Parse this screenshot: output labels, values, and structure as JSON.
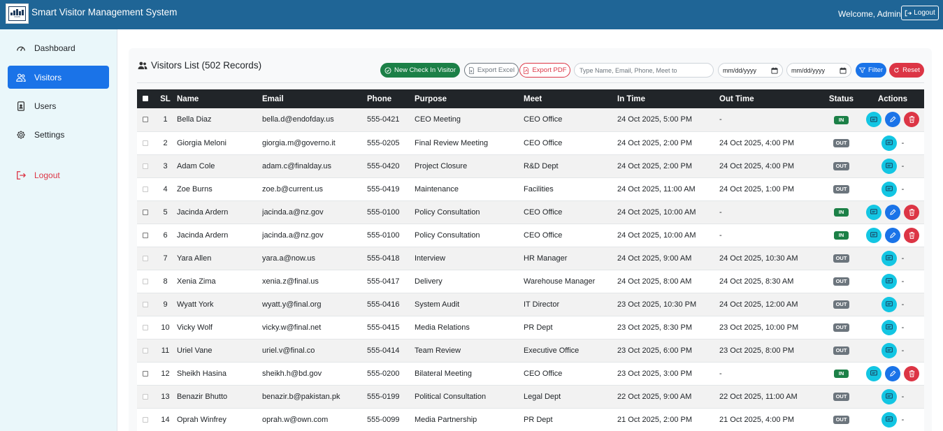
{
  "header": {
    "app_title": "Smart Visitor Management System",
    "welcome": "Welcome, Admin",
    "logout_label": "Logout"
  },
  "sidebar": {
    "items": [
      {
        "label": "Dashboard",
        "icon": "gauge-icon",
        "active": false
      },
      {
        "label": "Visitors",
        "icon": "people-icon",
        "active": true
      },
      {
        "label": "Users",
        "icon": "id-badge-icon",
        "active": false
      },
      {
        "label": "Settings",
        "icon": "gear-icon",
        "active": false
      }
    ],
    "logout_label": "Logout"
  },
  "main": {
    "title": "Visitors List (502 Records)",
    "new_checkin_label": "New Check In Visitor",
    "export_excel_label": "Export Excel",
    "export_pdf_label": "Export PDF",
    "search_placeholder": "Type Name, Email, Phone, Meet to",
    "date_from_placeholder": "mm/dd/yyyy",
    "date_to_placeholder": "mm/dd/yyyy",
    "filter_label": "Filter",
    "reset_label": "Reset"
  },
  "table": {
    "columns": [
      "SL",
      "Name",
      "Email",
      "Phone",
      "Purpose",
      "Meet",
      "In Time",
      "Out Time",
      "Status",
      "Actions"
    ],
    "rows": [
      {
        "sl": "1",
        "name": "Bella Diaz",
        "email": "bella.d@endofday.us",
        "phone": "555-0421",
        "purpose": "CEO Meeting",
        "meet": "CEO Office",
        "in_time": "24 Oct 2025, 5:00 PM",
        "out_time": "-",
        "status": "IN"
      },
      {
        "sl": "2",
        "name": "Giorgia Meloni",
        "email": "giorgia.m@governo.it",
        "phone": "555-0205",
        "purpose": "Final Review Meeting",
        "meet": "CEO Office",
        "in_time": "24 Oct 2025, 2:00 PM",
        "out_time": "24 Oct 2025, 4:00 PM",
        "status": "OUT"
      },
      {
        "sl": "3",
        "name": "Adam Cole",
        "email": "adam.c@finalday.us",
        "phone": "555-0420",
        "purpose": "Project Closure",
        "meet": "R&D Dept",
        "in_time": "24 Oct 2025, 2:00 PM",
        "out_time": "24 Oct 2025, 4:00 PM",
        "status": "OUT"
      },
      {
        "sl": "4",
        "name": "Zoe Burns",
        "email": "zoe.b@current.us",
        "phone": "555-0419",
        "purpose": "Maintenance",
        "meet": "Facilities",
        "in_time": "24 Oct 2025, 11:00 AM",
        "out_time": "24 Oct 2025, 1:00 PM",
        "status": "OUT"
      },
      {
        "sl": "5",
        "name": "Jacinda Ardern",
        "email": "jacinda.a@nz.gov",
        "phone": "555-0100",
        "purpose": "Policy Consultation",
        "meet": "CEO Office",
        "in_time": "24 Oct 2025, 10:00 AM",
        "out_time": "-",
        "status": "IN"
      },
      {
        "sl": "6",
        "name": "Jacinda Ardern",
        "email": "jacinda.a@nz.gov",
        "phone": "555-0100",
        "purpose": "Policy Consultation",
        "meet": "CEO Office",
        "in_time": "24 Oct 2025, 10:00 AM",
        "out_time": "-",
        "status": "IN"
      },
      {
        "sl": "7",
        "name": "Yara Allen",
        "email": "yara.a@now.us",
        "phone": "555-0418",
        "purpose": "Interview",
        "meet": "HR Manager",
        "in_time": "24 Oct 2025, 9:00 AM",
        "out_time": "24 Oct 2025, 10:30 AM",
        "status": "OUT"
      },
      {
        "sl": "8",
        "name": "Xenia Zima",
        "email": "xenia.z@final.us",
        "phone": "555-0417",
        "purpose": "Delivery",
        "meet": "Warehouse Manager",
        "in_time": "24 Oct 2025, 8:00 AM",
        "out_time": "24 Oct 2025, 8:30 AM",
        "status": "OUT"
      },
      {
        "sl": "9",
        "name": "Wyatt York",
        "email": "wyatt.y@final.org",
        "phone": "555-0416",
        "purpose": "System Audit",
        "meet": "IT Director",
        "in_time": "23 Oct 2025, 10:30 PM",
        "out_time": "24 Oct 2025, 12:00 AM",
        "status": "OUT"
      },
      {
        "sl": "10",
        "name": "Vicky Wolf",
        "email": "vicky.w@final.net",
        "phone": "555-0415",
        "purpose": "Media Relations",
        "meet": "PR Dept",
        "in_time": "23 Oct 2025, 8:30 PM",
        "out_time": "23 Oct 2025, 10:00 PM",
        "status": "OUT"
      },
      {
        "sl": "11",
        "name": "Uriel Vane",
        "email": "uriel.v@final.co",
        "phone": "555-0414",
        "purpose": "Team Review",
        "meet": "Executive Office",
        "in_time": "23 Oct 2025, 6:00 PM",
        "out_time": "23 Oct 2025, 8:00 PM",
        "status": "OUT"
      },
      {
        "sl": "12",
        "name": "Sheikh Hasina",
        "email": "sheikh.h@bd.gov",
        "phone": "555-0200",
        "purpose": "Bilateral Meeting",
        "meet": "CEO Office",
        "in_time": "23 Oct 2025, 3:00 PM",
        "out_time": "-",
        "status": "IN"
      },
      {
        "sl": "13",
        "name": "Benazir Bhutto",
        "email": "benazir.b@pakistan.pk",
        "phone": "555-0199",
        "purpose": "Political Consultation",
        "meet": "Legal Dept",
        "in_time": "22 Oct 2025, 9:00 AM",
        "out_time": "22 Oct 2025, 11:00 AM",
        "status": "OUT"
      },
      {
        "sl": "14",
        "name": "Oprah Winfrey",
        "email": "oprah.w@own.com",
        "phone": "555-0099",
        "purpose": "Media Partnership",
        "meet": "PR Dept",
        "in_time": "21 Oct 2025, 2:00 PM",
        "out_time": "21 Oct 2025, 4:00 PM",
        "status": "OUT"
      }
    ],
    "out_action_suffix": "-"
  },
  "colors": {
    "header_bg": "#1f6596",
    "sidebar_bg": "#eaf7fa",
    "active_nav": "#1a73e8",
    "in_badge": "#1c8047",
    "out_badge": "#6c757d",
    "view_button": "#13c6e3",
    "edit_button": "#1a73e8",
    "delete_button": "#dc3545"
  }
}
